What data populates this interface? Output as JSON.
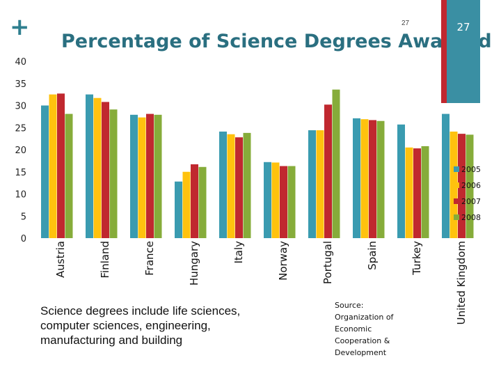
{
  "header": {
    "plus": "+",
    "slide_number_small": "27",
    "slide_number_box": "27"
  },
  "colors": {
    "accent_red": "#c0282f",
    "accent_teal": "#3a8fa3"
  },
  "chart_data": {
    "type": "bar",
    "title": "Percentage of Science Degrees Awarded",
    "categories": [
      "Austria",
      "Finland",
      "France",
      "Hungary",
      "Italy",
      "Norway",
      "Portugal",
      "Spain",
      "Turkey",
      "United Kingdom"
    ],
    "series": [
      {
        "name": "2005",
        "color": "#3a9bb0",
        "values": [
          30.0,
          32.5,
          27.9,
          12.8,
          24.1,
          17.2,
          24.4,
          27.1,
          25.7,
          28.1
        ]
      },
      {
        "name": "2006",
        "color": "#ffc20e",
        "values": [
          32.5,
          31.7,
          27.3,
          15.0,
          23.5,
          17.1,
          24.4,
          26.9,
          20.5,
          24.1
        ]
      },
      {
        "name": "2007",
        "color": "#c0282f",
        "values": [
          32.7,
          30.8,
          28.1,
          16.7,
          22.8,
          16.3,
          30.2,
          26.7,
          20.3,
          23.6
        ]
      },
      {
        "name": "2008",
        "color": "#86ac3a",
        "values": [
          28.1,
          29.1,
          27.9,
          16.1,
          23.8,
          16.3,
          33.6,
          26.5,
          20.8,
          23.4
        ]
      }
    ],
    "ylim": [
      0,
      40
    ],
    "yticks": [
      0,
      5,
      10,
      15,
      20,
      25,
      30,
      35,
      40
    ],
    "grid": false,
    "legend": "right"
  },
  "footer": {
    "caption": "Science degrees include life sciences, computer sciences, engineering, manufacturing and building",
    "source": "Source: Organization of Economic Cooperation & Development"
  }
}
